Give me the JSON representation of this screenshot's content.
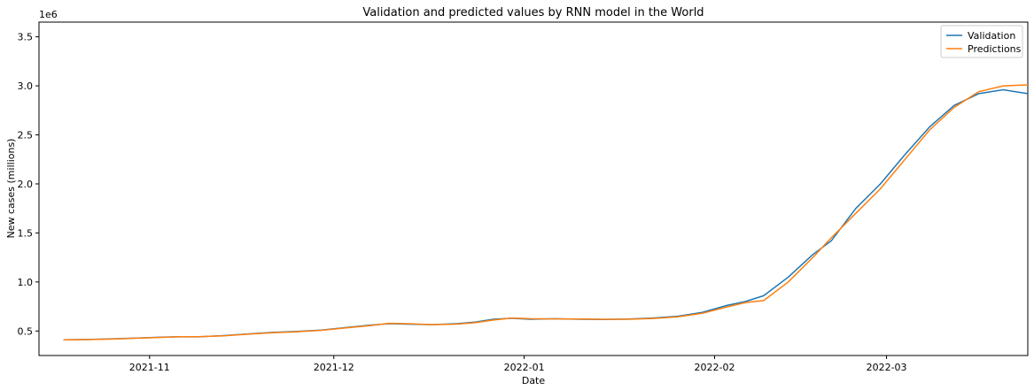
{
  "chart_data": {
    "type": "line",
    "title": "Validation and predicted values by RNN model in the World",
    "xlabel": "Date",
    "ylabel": "New cases (millions)",
    "y_offset_text": "1e6",
    "xlim": [
      "2021-10-14",
      "2022-03-24"
    ],
    "ylim": [
      250000,
      3650000
    ],
    "x_ticks": [
      {
        "value": "2021-11-01",
        "label": "2021-11"
      },
      {
        "value": "2021-12-01",
        "label": "2021-12"
      },
      {
        "value": "2022-01-01",
        "label": "2022-01"
      },
      {
        "value": "2022-02-01",
        "label": "2022-02"
      },
      {
        "value": "2022-03-01",
        "label": "2022-03"
      }
    ],
    "y_ticks": [
      {
        "value": 500000,
        "label": "0.5"
      },
      {
        "value": 1000000,
        "label": "1.0"
      },
      {
        "value": 1500000,
        "label": "1.5"
      },
      {
        "value": 2000000,
        "label": "2.0"
      },
      {
        "value": 2500000,
        "label": "2.5"
      },
      {
        "value": 3000000,
        "label": "3.0"
      },
      {
        "value": 3500000,
        "label": "3.5"
      }
    ],
    "grid": false,
    "legend": "top-right",
    "series": [
      {
        "name": "Validation",
        "color": "#1f77b4",
        "points": [
          [
            "2021-10-18",
            410000
          ],
          [
            "2021-10-22",
            413000
          ],
          [
            "2021-10-26",
            420000
          ],
          [
            "2021-10-30",
            428000
          ],
          [
            "2021-11-03",
            437000
          ],
          [
            "2021-11-06",
            442000
          ],
          [
            "2021-11-09",
            440000
          ],
          [
            "2021-11-13",
            453000
          ],
          [
            "2021-11-17",
            470000
          ],
          [
            "2021-11-21",
            485000
          ],
          [
            "2021-11-25",
            495000
          ],
          [
            "2021-11-29",
            510000
          ],
          [
            "2021-12-03",
            535000
          ],
          [
            "2021-12-07",
            560000
          ],
          [
            "2021-12-10",
            575000
          ],
          [
            "2021-12-13",
            570000
          ],
          [
            "2021-12-17",
            565000
          ],
          [
            "2021-12-21",
            575000
          ],
          [
            "2021-12-24",
            590000
          ],
          [
            "2021-12-27",
            620000
          ],
          [
            "2021-12-30",
            630000
          ],
          [
            "2022-01-02",
            620000
          ],
          [
            "2022-01-06",
            625000
          ],
          [
            "2022-01-10",
            620000
          ],
          [
            "2022-01-14",
            618000
          ],
          [
            "2022-01-18",
            622000
          ],
          [
            "2022-01-22",
            632000
          ],
          [
            "2022-01-26",
            650000
          ],
          [
            "2022-01-30",
            690000
          ],
          [
            "2022-02-03",
            760000
          ],
          [
            "2022-02-06",
            800000
          ],
          [
            "2022-02-09",
            860000
          ],
          [
            "2022-02-13",
            1050000
          ],
          [
            "2022-02-17",
            1280000
          ],
          [
            "2022-02-20",
            1420000
          ],
          [
            "2022-02-24",
            1750000
          ],
          [
            "2022-02-28",
            2000000
          ],
          [
            "2022-03-04",
            2300000
          ],
          [
            "2022-03-08",
            2580000
          ],
          [
            "2022-03-12",
            2800000
          ],
          [
            "2022-03-16",
            2920000
          ],
          [
            "2022-03-20",
            2960000
          ],
          [
            "2022-03-24",
            2920000
          ]
        ]
      },
      {
        "name": "Predictions",
        "color": "#ff7f0e",
        "points": [
          [
            "2021-10-18",
            410000
          ],
          [
            "2021-10-22",
            412000
          ],
          [
            "2021-10-26",
            418000
          ],
          [
            "2021-10-30",
            427000
          ],
          [
            "2021-11-03",
            435000
          ],
          [
            "2021-11-06",
            441000
          ],
          [
            "2021-11-09",
            441000
          ],
          [
            "2021-11-13",
            450000
          ],
          [
            "2021-11-17",
            467000
          ],
          [
            "2021-11-21",
            482000
          ],
          [
            "2021-11-25",
            493000
          ],
          [
            "2021-11-29",
            507000
          ],
          [
            "2021-12-03",
            532000
          ],
          [
            "2021-12-07",
            556000
          ],
          [
            "2021-12-10",
            578000
          ],
          [
            "2021-12-13",
            575000
          ],
          [
            "2021-12-17",
            565000
          ],
          [
            "2021-12-21",
            570000
          ],
          [
            "2021-12-24",
            585000
          ],
          [
            "2021-12-27",
            612000
          ],
          [
            "2021-12-30",
            632000
          ],
          [
            "2022-01-02",
            625000
          ],
          [
            "2022-01-06",
            623000
          ],
          [
            "2022-01-10",
            622000
          ],
          [
            "2022-01-14",
            620000
          ],
          [
            "2022-01-18",
            620000
          ],
          [
            "2022-01-22",
            628000
          ],
          [
            "2022-01-26",
            645000
          ],
          [
            "2022-01-30",
            680000
          ],
          [
            "2022-02-03",
            745000
          ],
          [
            "2022-02-06",
            790000
          ],
          [
            "2022-02-09",
            810000
          ],
          [
            "2022-02-13",
            1000000
          ],
          [
            "2022-02-17",
            1250000
          ],
          [
            "2022-02-20",
            1450000
          ],
          [
            "2022-02-24",
            1700000
          ],
          [
            "2022-02-28",
            1950000
          ],
          [
            "2022-03-04",
            2250000
          ],
          [
            "2022-03-08",
            2550000
          ],
          [
            "2022-03-12",
            2780000
          ],
          [
            "2022-03-16",
            2940000
          ],
          [
            "2022-03-20",
            3000000
          ],
          [
            "2022-03-24",
            3010000
          ]
        ]
      }
    ]
  }
}
